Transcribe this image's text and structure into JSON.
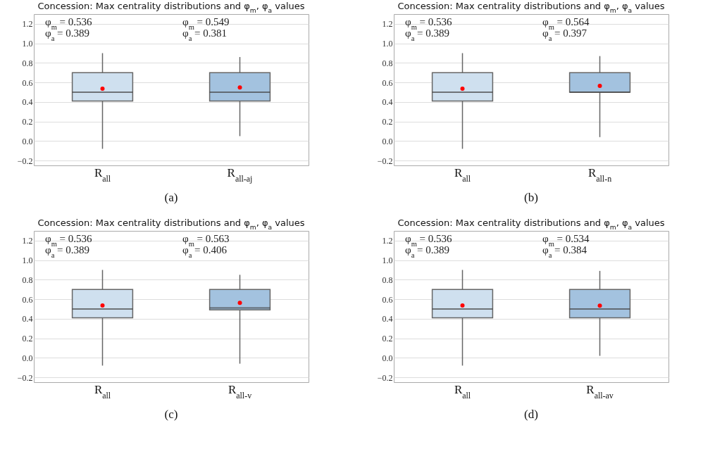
{
  "chart_data": [
    {
      "type": "box",
      "title": "Concession: Max centrality distributions and φ$_{m}$, φ$_{a}$ values",
      "categories": [
        "R$_{all}$",
        "R$_{all-aj}$"
      ],
      "colors": [
        "#cfe0ef",
        "#a3c2df"
      ],
      "boxes": [
        {
          "low": -0.08,
          "q1": 0.41,
          "median": 0.5,
          "q3": 0.7,
          "high": 0.9,
          "mean": 0.536
        },
        {
          "low": 0.05,
          "q1": 0.41,
          "median": 0.5,
          "q3": 0.7,
          "high": 0.86,
          "mean": 0.549
        }
      ],
      "ylim": [
        -0.25,
        1.3
      ],
      "yticks": [
        {
          "value": -0.2,
          "label": "−0.2"
        },
        {
          "value": 0,
          "label": "0.0"
        },
        0.2,
        0.4,
        0.6,
        0.8,
        {
          "value": 1,
          "label": "1.0"
        },
        1.2
      ],
      "grid": "y",
      "annotations": [
        "φ$_{m}$ = 0.536",
        "φ$_{a}$ = 0.389",
        "φ$_{m}$ = 0.549",
        "φ$_{a}$ = 0.381",
        "(a)"
      ]
    },
    {
      "type": "box",
      "title": "Concession: Max centrality distributions and φ$_{m}$, φ$_{a}$ values",
      "categories": [
        "R$_{all}$",
        "R$_{all-n}$"
      ],
      "colors": [
        "#cfe0ef",
        "#a3c2df"
      ],
      "boxes": [
        {
          "low": -0.08,
          "q1": 0.41,
          "median": 0.5,
          "q3": 0.7,
          "high": 0.9,
          "mean": 0.536
        },
        {
          "low": 0.04,
          "q1": 0.5,
          "median": 0.5,
          "q3": 0.7,
          "high": 0.87,
          "mean": 0.564
        }
      ],
      "ylim": [
        -0.25,
        1.3
      ],
      "yticks": [
        {
          "value": -0.2,
          "label": "−0.2"
        },
        {
          "value": 0,
          "label": "0.0"
        },
        0.2,
        0.4,
        0.6,
        0.8,
        {
          "value": 1,
          "label": "1.0"
        },
        1.2
      ],
      "grid": "y",
      "annotations": [
        "φ$_{m}$ = 0.536",
        "φ$_{a}$ = 0.389",
        "φ$_{m}$ = 0.564",
        "φ$_{a}$ = 0.397",
        "(b)"
      ]
    },
    {
      "type": "box",
      "title": "Concession: Max centrality distributions and φ$_{m}$, φ$_{a}$ values",
      "categories": [
        "R$_{all}$",
        "R$_{all-v}$"
      ],
      "colors": [
        "#cfe0ef",
        "#a3c2df"
      ],
      "boxes": [
        {
          "low": -0.08,
          "q1": 0.41,
          "median": 0.5,
          "q3": 0.7,
          "high": 0.9,
          "mean": 0.536
        },
        {
          "low": -0.06,
          "q1": 0.49,
          "median": 0.51,
          "q3": 0.7,
          "high": 0.85,
          "mean": 0.563
        }
      ],
      "ylim": [
        -0.25,
        1.3
      ],
      "yticks": [
        {
          "value": -0.2,
          "label": "−0.2"
        },
        {
          "value": 0,
          "label": "0.0"
        },
        0.2,
        0.4,
        0.6,
        0.8,
        {
          "value": 1,
          "label": "1.0"
        },
        1.2
      ],
      "grid": "y",
      "annotations": [
        "φ$_{m}$ = 0.536",
        "φ$_{a}$ = 0.389",
        "φ$_{m}$ = 0.563",
        "φ$_{a}$ = 0.406",
        "(c)"
      ]
    },
    {
      "type": "box",
      "title": "Concession: Max centrality distributions and φ$_{m}$, φ$_{a}$ values",
      "categories": [
        "R$_{all}$",
        "R$_{all-av}$"
      ],
      "colors": [
        "#cfe0ef",
        "#a3c2df"
      ],
      "boxes": [
        {
          "low": -0.08,
          "q1": 0.41,
          "median": 0.5,
          "q3": 0.7,
          "high": 0.9,
          "mean": 0.536
        },
        {
          "low": 0.02,
          "q1": 0.41,
          "median": 0.5,
          "q3": 0.7,
          "high": 0.89,
          "mean": 0.534
        }
      ],
      "ylim": [
        -0.25,
        1.3
      ],
      "yticks": [
        {
          "value": -0.2,
          "label": "−0.2"
        },
        {
          "value": 0,
          "label": "0.0"
        },
        0.2,
        0.4,
        0.6,
        0.8,
        {
          "value": 1,
          "label": "1.0"
        },
        1.2
      ],
      "grid": "y",
      "annotations": [
        "φ$_{m}$ = 0.536",
        "φ$_{a}$ = 0.389",
        "φ$_{m}$ = 0.534",
        "φ$_{a}$ = 0.384",
        "(d)"
      ]
    }
  ]
}
